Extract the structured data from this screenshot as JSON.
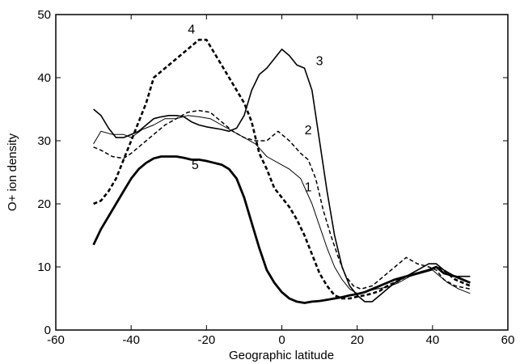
{
  "chart_data": {
    "type": "line",
    "xlabel": "Geographic latitude",
    "ylabel": "O+ ion density",
    "xlim": [
      -60,
      60
    ],
    "ylim": [
      0,
      50
    ],
    "xticks": [
      -60,
      -40,
      -20,
      0,
      20,
      40,
      60
    ],
    "yticks": [
      0,
      10,
      20,
      30,
      40,
      50
    ],
    "grid": false,
    "legend": "none",
    "series": [
      {
        "name": "1",
        "style": "thin-solid",
        "label_at": [
          7,
          22
        ],
        "x": [
          -50,
          -48,
          -45,
          -42,
          -40,
          -37,
          -34,
          -31,
          -28,
          -25,
          -22,
          -19,
          -16,
          -13,
          -10,
          -7,
          -4,
          -1,
          2,
          5,
          8,
          10,
          12,
          14,
          16,
          18,
          20,
          22,
          25,
          28,
          31,
          34,
          37,
          40,
          42,
          44,
          47,
          50
        ],
        "y": [
          29.5,
          31.5,
          31,
          31,
          30.5,
          31.8,
          32.5,
          33.5,
          33.5,
          34,
          33.8,
          33.5,
          32.5,
          31.5,
          30.5,
          29.5,
          27.5,
          26.5,
          25.5,
          24,
          20,
          16.5,
          13,
          10,
          8,
          6.5,
          5.8,
          6,
          6.5,
          6.8,
          7.5,
          8.5,
          9,
          9.5,
          8.5,
          7.5,
          6.5,
          5.8
        ]
      },
      {
        "name": "2",
        "style": "thin-dashed",
        "label_at": [
          7,
          31
        ],
        "x": [
          -50,
          -48,
          -45,
          -42,
          -40,
          -37,
          -34,
          -31,
          -28,
          -25,
          -22,
          -19,
          -16,
          -13,
          -10,
          -7,
          -4,
          -1,
          2,
          5,
          7,
          9,
          11,
          13,
          15,
          17,
          19,
          21,
          24,
          27,
          30,
          33,
          36,
          39,
          41,
          43,
          46,
          50
        ],
        "y": [
          29,
          28.5,
          27.5,
          27.2,
          28,
          29.5,
          31,
          32.5,
          33.5,
          34.5,
          34.8,
          34.5,
          33,
          31.5,
          30.5,
          30,
          30,
          31.5,
          30,
          28,
          27,
          24,
          19,
          15,
          11.5,
          8.5,
          7,
          6.5,
          7,
          8.5,
          10,
          11.5,
          10.5,
          10,
          9.5,
          8,
          7,
          6.5
        ]
      },
      {
        "name": "3",
        "style": "medium-solid",
        "label_at": [
          10,
          42
        ],
        "x": [
          -50,
          -48,
          -46,
          -44,
          -42,
          -40,
          -38,
          -36,
          -34,
          -32,
          -30,
          -28,
          -26,
          -24,
          -22,
          -20,
          -18,
          -16,
          -14,
          -12,
          -10,
          -8,
          -6,
          -4,
          -2,
          0,
          2,
          4,
          6,
          8,
          10,
          12,
          14,
          16,
          18,
          20,
          22,
          24,
          26,
          28,
          30,
          33,
          36,
          39,
          41,
          43,
          46,
          50
        ],
        "y": [
          35,
          34,
          32,
          30.5,
          30.5,
          31,
          31.5,
          32.5,
          33.5,
          33.8,
          34,
          34,
          33.8,
          33,
          32.5,
          32.2,
          32,
          31.8,
          31.5,
          32,
          34,
          38,
          40.5,
          41.5,
          43,
          44.5,
          43.5,
          42,
          41.5,
          38,
          30,
          22,
          15,
          10,
          7,
          5.5,
          4.5,
          4.5,
          5.5,
          6.5,
          7.5,
          8.5,
          9.5,
          10.5,
          10.5,
          9.5,
          8.5,
          8.5
        ]
      },
      {
        "name": "4",
        "style": "thick-dashed",
        "label_at": [
          -24,
          47
        ],
        "x": [
          -50,
          -48,
          -46,
          -44,
          -42,
          -40,
          -38,
          -36,
          -34,
          -32,
          -30,
          -28,
          -26,
          -24,
          -22,
          -20,
          -18,
          -16,
          -14,
          -12,
          -10,
          -8,
          -6,
          -4,
          -2,
          0,
          2,
          4,
          6,
          8,
          10,
          12,
          14,
          16,
          18,
          20,
          22,
          24,
          26,
          28,
          30,
          33,
          36,
          39,
          41,
          43,
          46,
          50
        ],
        "y": [
          20,
          20.5,
          22,
          24,
          27,
          30,
          33,
          36,
          40,
          41,
          42,
          43,
          44,
          45,
          46,
          46,
          44,
          42,
          40,
          38,
          36,
          33,
          28,
          25.5,
          22.5,
          21,
          19.5,
          17.5,
          15,
          12,
          9,
          7,
          5.5,
          5,
          5,
          5.3,
          5.5,
          5.8,
          6.2,
          7,
          7.5,
          8.5,
          9,
          9.5,
          10,
          9.5,
          8,
          7
        ]
      },
      {
        "name": "5",
        "style": "thick-solid",
        "label_at": [
          -23,
          25.5
        ],
        "x": [
          -50,
          -48,
          -46,
          -44,
          -42,
          -40,
          -38,
          -36,
          -34,
          -32,
          -30,
          -28,
          -26,
          -24,
          -22,
          -20,
          -18,
          -16,
          -14,
          -12,
          -10,
          -8,
          -6,
          -4,
          -2,
          0,
          2,
          4,
          6,
          8,
          10,
          12,
          14,
          16,
          18,
          20,
          22,
          24,
          26,
          28,
          30,
          33,
          36,
          39,
          41,
          43,
          46,
          50
        ],
        "y": [
          13.5,
          16,
          18,
          20,
          22,
          24,
          25.5,
          26.5,
          27.2,
          27.5,
          27.5,
          27.5,
          27.3,
          27,
          27,
          26.8,
          26.5,
          26.2,
          25.5,
          24,
          21,
          17,
          13,
          9.5,
          7.5,
          6,
          5,
          4.5,
          4.3,
          4.5,
          4.6,
          4.8,
          5,
          5.2,
          5.5,
          5.7,
          6,
          6.5,
          7,
          7.5,
          8,
          8.5,
          9,
          9.5,
          10,
          9,
          8.5,
          7.5
        ]
      }
    ]
  }
}
